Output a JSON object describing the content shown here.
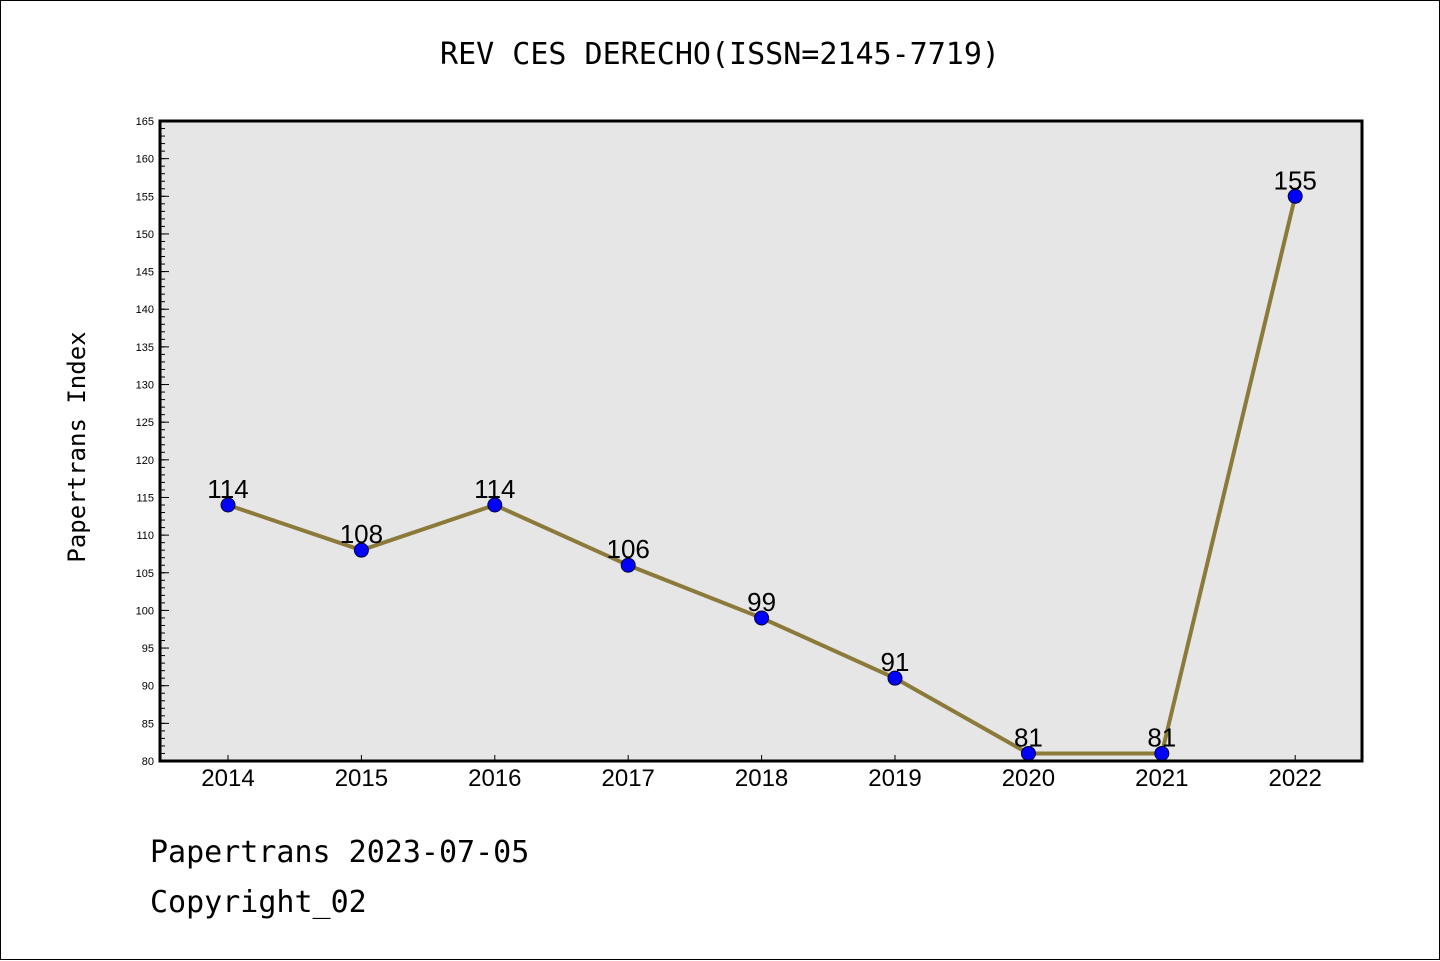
{
  "chart_data": {
    "type": "line",
    "title": "REV CES DERECHO(ISSN=2145-7719)",
    "xlabel": "",
    "ylabel": "Papertrans Index",
    "categories": [
      "2014",
      "2015",
      "2016",
      "2017",
      "2018",
      "2019",
      "2020",
      "2021",
      "2022"
    ],
    "series": [
      {
        "values": [
          114,
          108,
          114,
          106,
          99,
          91,
          81,
          81,
          155
        ]
      }
    ],
    "ylim": [
      80,
      165
    ],
    "y_tick_step": 5,
    "y_minor_step": 1,
    "grid": false,
    "data_labels": true,
    "colors": {
      "line": "#8B7A3A",
      "marker": "#0000FF",
      "plot_background": "#E6E6E6"
    }
  },
  "footer": {
    "date_text": "Papertrans 2023-07-05",
    "copyright_text": "Copyright_02"
  }
}
